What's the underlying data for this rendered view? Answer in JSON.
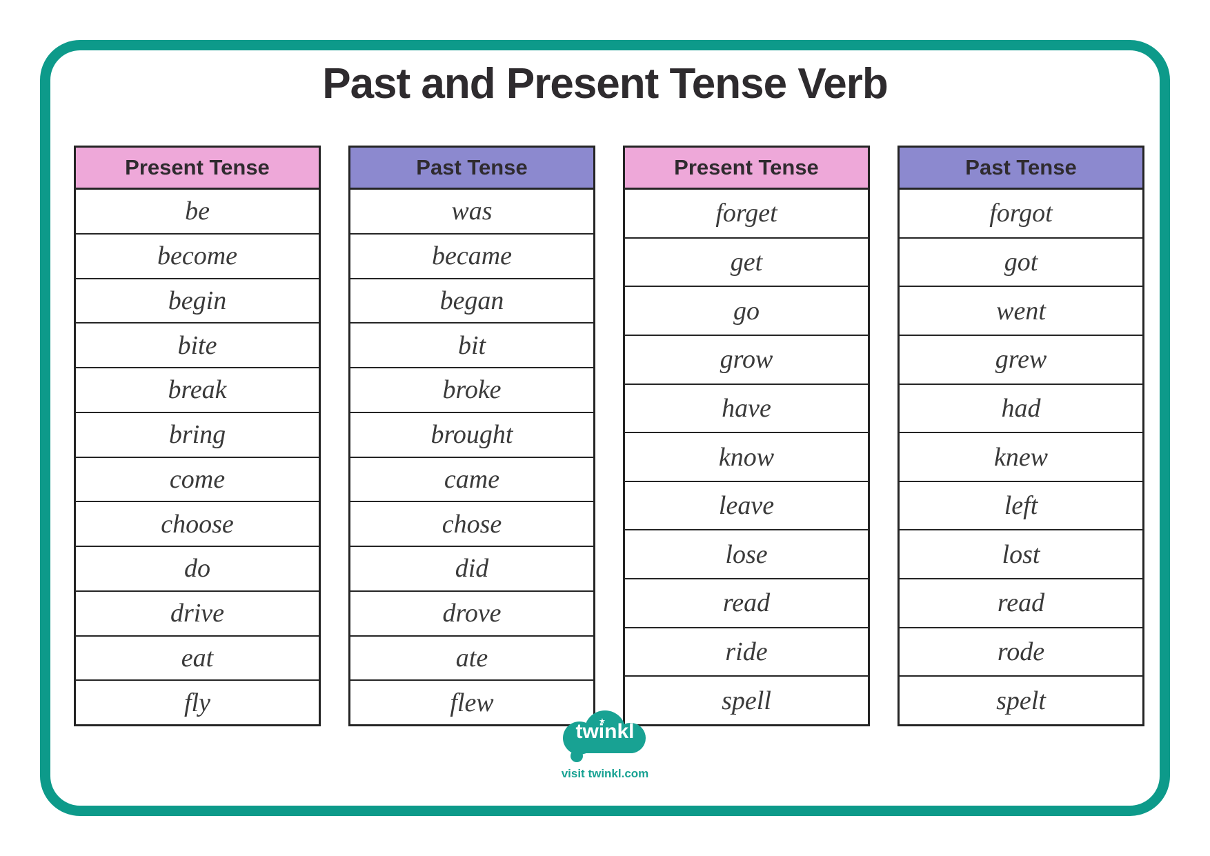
{
  "page": {
    "title": "Past and Present Tense Verb"
  },
  "tables": [
    {
      "header": "Present Tense",
      "theme": "pink",
      "rows": [
        "be",
        "become",
        "begin",
        "bite",
        "break",
        "bring",
        "come",
        "choose",
        "do",
        "drive",
        "eat",
        "fly"
      ]
    },
    {
      "header": "Past Tense",
      "theme": "purple",
      "rows": [
        "was",
        "became",
        "began",
        "bit",
        "broke",
        "brought",
        "came",
        "chose",
        "did",
        "drove",
        "ate",
        "flew"
      ]
    },
    {
      "header": "Present Tense",
      "theme": "pink",
      "rows": [
        "forget",
        "get",
        "go",
        "grow",
        "have",
        "know",
        "leave",
        "lose",
        "read",
        "ride",
        "spell"
      ]
    },
    {
      "header": "Past Tense",
      "theme": "purple",
      "rows": [
        "forgot",
        "got",
        "went",
        "grew",
        "had",
        "knew",
        "left",
        "lost",
        "read",
        "rode",
        "spelt"
      ]
    }
  ],
  "footer": {
    "logo_text": "twinkl",
    "star_icon": "★",
    "visit_text": "visit twinkl.com"
  },
  "colors": {
    "frame-teal": "#0d9a8a",
    "logo-teal": "#18a293",
    "header-pink": "#eea8d9",
    "header-purple": "#8c89cf",
    "grid-line": "#242424",
    "cell-text": "#3a3a3a",
    "title-text": "#2e2b2e"
  }
}
